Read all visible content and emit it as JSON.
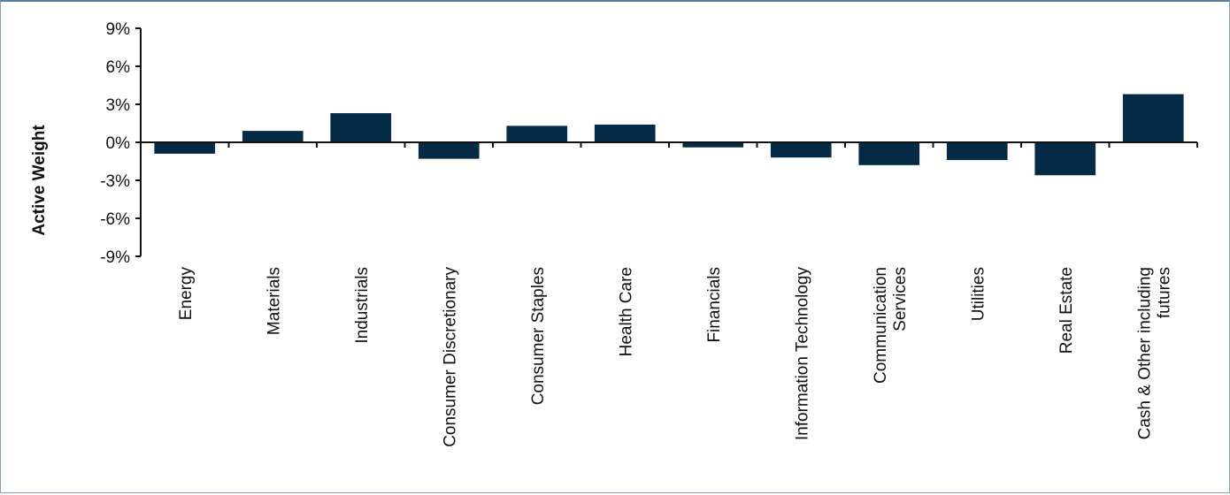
{
  "chart_data": {
    "type": "bar",
    "title": "",
    "xlabel": "",
    "ylabel": "Active Weight",
    "ylim": [
      -9,
      9
    ],
    "yticks": [
      9,
      6,
      3,
      0,
      -3,
      -6,
      -9
    ],
    "ytick_labels": [
      "9%",
      "6%",
      "3%",
      "0%",
      "-3%",
      "-6%",
      "-9%"
    ],
    "grid": false,
    "legend": "none",
    "categories": [
      [
        "Energy"
      ],
      [
        "Materials"
      ],
      [
        "Industrials"
      ],
      [
        "Consumer Discretionary"
      ],
      [
        "Consumer Staples"
      ],
      [
        "Health Care"
      ],
      [
        "Financials"
      ],
      [
        "Information Technology"
      ],
      [
        "Communication",
        "Services"
      ],
      [
        "Utilities"
      ],
      [
        "Real Estate"
      ],
      [
        "Cash & Other including",
        "futures"
      ]
    ],
    "values": [
      -0.9,
      0.9,
      2.3,
      -1.3,
      1.3,
      1.4,
      -0.4,
      -1.2,
      -1.8,
      -1.4,
      -2.6,
      3.8
    ],
    "bar_color": "#052a45"
  }
}
